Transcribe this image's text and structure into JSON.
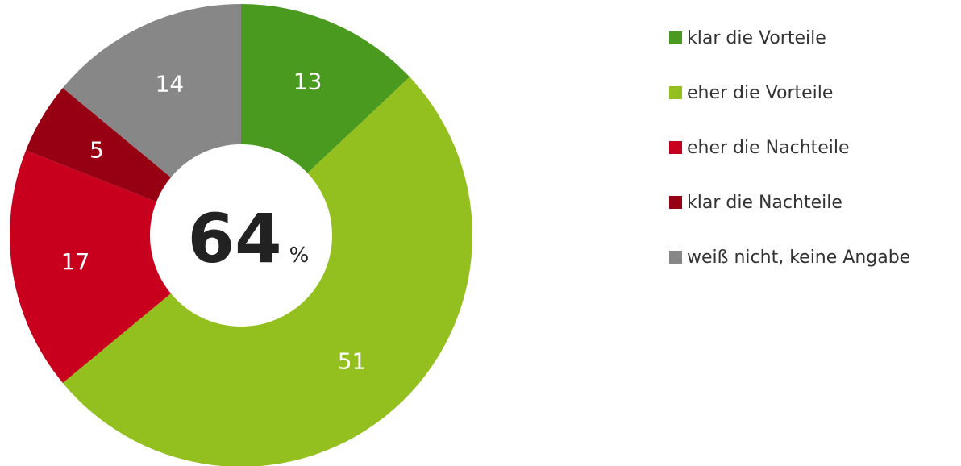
{
  "chart_data": {
    "type": "pie",
    "style": "donut",
    "categories": [
      "klar die Vorteile",
      "eher die Vorteile",
      "eher die Nachteile",
      "klar die Nachteile",
      "weiß nicht, keine Angabe"
    ],
    "values": [
      13,
      51,
      17,
      5,
      14
    ],
    "colors": [
      "#4a9a1f",
      "#93c01f",
      "#c8001e",
      "#970012",
      "#878787"
    ],
    "center_value": "64",
    "center_unit": "%",
    "legend_position": "right"
  }
}
